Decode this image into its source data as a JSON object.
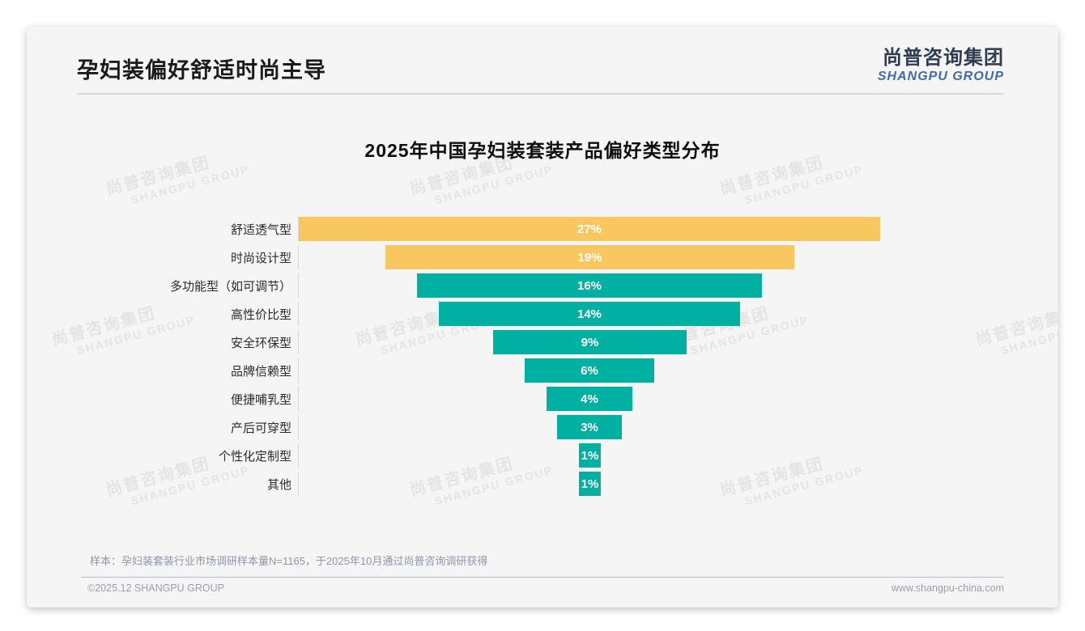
{
  "page": {
    "title": "孕妇装偏好舒适时尚主导",
    "logo": {
      "cn": "尚普咨询集团",
      "en": "SHANGPU GROUP"
    },
    "watermark": {
      "line1": "尚普咨询集团",
      "line2": "SHANGPU GROUP"
    },
    "note": "样本：孕妇装套装行业市场调研样本量N=1165，于2025年10月通过尚普咨询调研获得",
    "footer": {
      "left": "©2025.12 SHANGPU GROUP",
      "right": "www.shangpu-china.com"
    }
  },
  "colors": {
    "accent_yellow": "#F8C75F",
    "accent_teal": "#00B1A2",
    "logo_cn": "#2F3C50",
    "logo_en": "#3D6DA9"
  },
  "chart_data": {
    "type": "bar",
    "variant": "horizontal-centered-funnel",
    "title": "2025年中国孕妇装套装产品偏好类型分布",
    "unit": "%",
    "categories": [
      "舒适透气型",
      "时尚设计型",
      "多功能型（如可调节）",
      "高性价比型",
      "安全环保型",
      "品牌信赖型",
      "便捷哺乳型",
      "产后可穿型",
      "个性化定制型",
      "其他"
    ],
    "values": [
      27,
      19,
      16,
      14,
      9,
      6,
      4,
      3,
      1,
      1
    ],
    "value_labels": [
      "27%",
      "19%",
      "16%",
      "14%",
      "9%",
      "6%",
      "4%",
      "3%",
      "1%",
      "1%"
    ],
    "bar_colors": [
      "#F8C75F",
      "#F8C75F",
      "#00B1A2",
      "#00B1A2",
      "#00B1A2",
      "#00B1A2",
      "#00B1A2",
      "#00B1A2",
      "#00B1A2",
      "#00B1A2"
    ],
    "legend": [],
    "grid": false,
    "axis_line": true
  }
}
